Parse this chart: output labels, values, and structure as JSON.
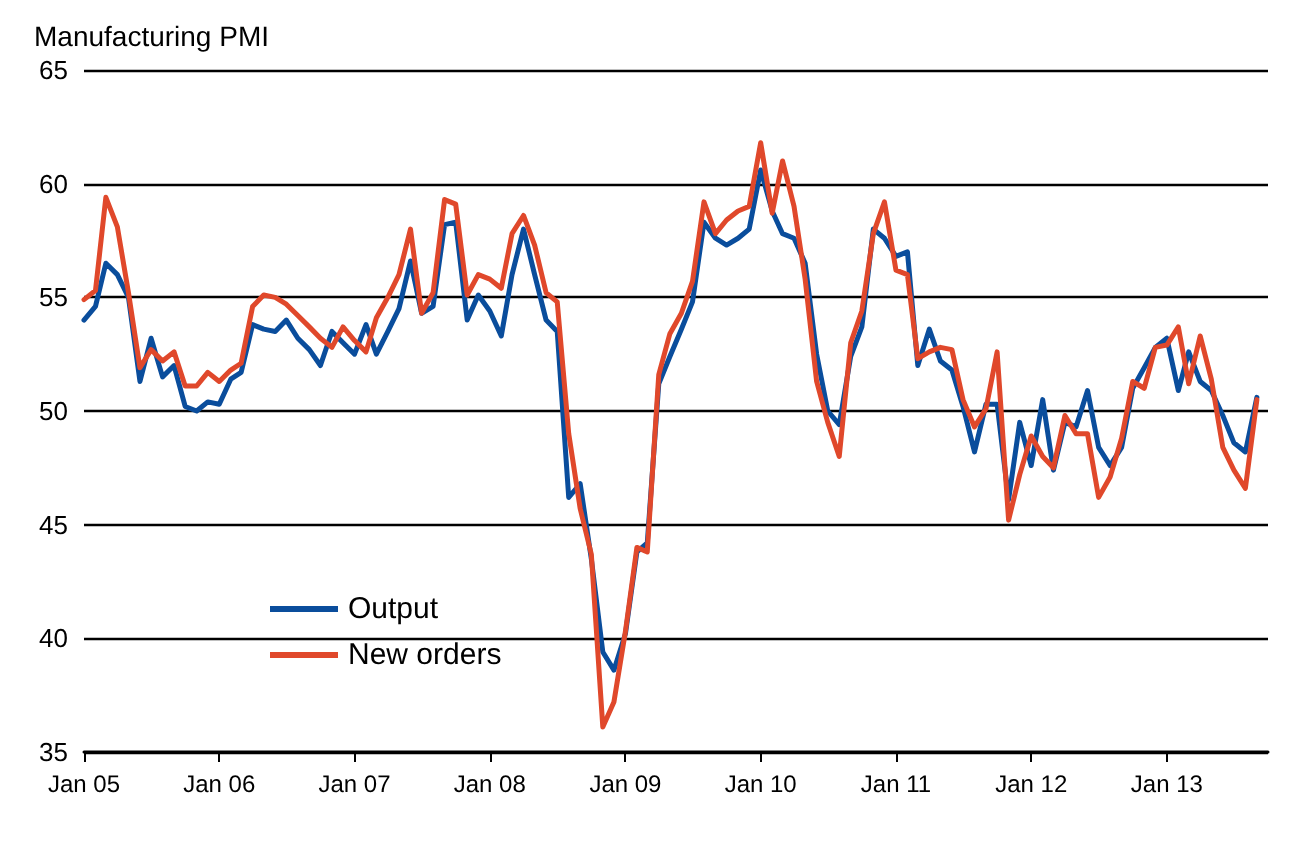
{
  "chart_data": {
    "type": "line",
    "title": "Manufacturing PMI",
    "x": [
      "2005-01",
      "2005-02",
      "2005-03",
      "2005-04",
      "2005-05",
      "2005-06",
      "2005-07",
      "2005-08",
      "2005-09",
      "2005-10",
      "2005-11",
      "2005-12",
      "2006-01",
      "2006-02",
      "2006-03",
      "2006-04",
      "2006-05",
      "2006-06",
      "2006-07",
      "2006-08",
      "2006-09",
      "2006-10",
      "2006-11",
      "2006-12",
      "2007-01",
      "2007-02",
      "2007-03",
      "2007-04",
      "2007-05",
      "2007-06",
      "2007-07",
      "2007-08",
      "2007-09",
      "2007-10",
      "2007-11",
      "2007-12",
      "2008-01",
      "2008-02",
      "2008-03",
      "2008-04",
      "2008-05",
      "2008-06",
      "2008-07",
      "2008-08",
      "2008-09",
      "2008-10",
      "2008-11",
      "2008-12",
      "2009-01",
      "2009-02",
      "2009-03",
      "2009-04",
      "2009-05",
      "2009-06",
      "2009-07",
      "2009-08",
      "2009-09",
      "2009-10",
      "2009-11",
      "2009-12",
      "2010-01",
      "2010-02",
      "2010-03",
      "2010-04",
      "2010-05",
      "2010-06",
      "2010-07",
      "2010-08",
      "2010-09",
      "2010-10",
      "2010-11",
      "2010-12",
      "2011-01",
      "2011-02",
      "2011-03",
      "2011-04",
      "2011-05",
      "2011-06",
      "2011-07",
      "2011-08",
      "2011-09",
      "2011-10",
      "2011-11",
      "2011-12",
      "2012-01",
      "2012-02",
      "2012-03",
      "2012-04",
      "2012-05",
      "2012-06",
      "2012-07",
      "2012-08",
      "2012-09",
      "2012-10",
      "2012-11",
      "2012-12",
      "2013-01",
      "2013-02",
      "2013-03",
      "2013-04",
      "2013-05",
      "2013-06",
      "2013-07",
      "2013-08",
      "2013-09"
    ],
    "series": [
      {
        "name": "Output",
        "color": "#0a4d9c",
        "values": [
          54.0,
          54.6,
          56.5,
          56.0,
          55.0,
          51.3,
          53.2,
          51.5,
          52.0,
          50.2,
          50.0,
          50.4,
          50.3,
          51.4,
          51.7,
          53.8,
          53.6,
          53.5,
          54.0,
          53.2,
          52.7,
          52.0,
          53.5,
          53.0,
          52.5,
          53.8,
          52.5,
          53.5,
          54.5,
          56.6,
          54.3,
          54.6,
          58.2,
          58.3,
          54.0,
          55.1,
          54.4,
          53.3,
          56.0,
          58.0,
          56.0,
          54.0,
          53.5,
          46.2,
          46.8,
          43.5,
          39.4,
          38.6,
          40.2,
          43.8,
          44.2,
          51.2,
          52.4,
          53.6,
          54.8,
          58.3,
          57.6,
          57.3,
          57.6,
          58.0,
          60.6,
          58.8,
          57.8,
          57.6,
          56.5,
          52.5,
          50.0,
          49.4,
          52.4,
          53.7,
          58.0,
          57.6,
          56.8,
          57.0,
          52.0,
          53.6,
          52.2,
          51.8,
          50.2,
          48.2,
          50.3,
          50.3,
          46.1,
          49.5,
          47.6,
          50.5,
          47.4,
          49.5,
          49.3,
          50.9,
          48.4,
          47.6,
          48.4,
          51.0,
          51.9,
          52.8,
          53.2,
          50.9,
          52.6,
          51.3,
          50.9,
          49.8,
          48.6,
          48.2,
          50.6
        ]
      },
      {
        "name": "New orders",
        "color": "#e0482b",
        "values": [
          54.9,
          55.3,
          59.4,
          58.1,
          55.2,
          51.9,
          52.7,
          52.2,
          52.6,
          51.1,
          51.1,
          51.7,
          51.3,
          51.8,
          52.1,
          54.6,
          55.1,
          55.0,
          54.7,
          54.2,
          53.7,
          53.2,
          52.8,
          53.7,
          53.1,
          52.6,
          54.1,
          55.0,
          56.0,
          58.0,
          54.3,
          55.2,
          59.3,
          59.1,
          55.1,
          56.0,
          55.8,
          55.4,
          57.8,
          58.6,
          57.3,
          55.2,
          54.8,
          49.0,
          45.7,
          43.7,
          36.1,
          37.2,
          40.3,
          44.0,
          43.8,
          51.6,
          53.4,
          54.3,
          55.7,
          59.2,
          57.8,
          58.4,
          58.8,
          59.0,
          61.8,
          58.7,
          61.0,
          59.0,
          55.8,
          51.3,
          49.5,
          48.0,
          53.0,
          54.4,
          57.8,
          59.2,
          56.2,
          56.0,
          52.3,
          52.6,
          52.8,
          52.7,
          50.5,
          49.3,
          50.1,
          52.6,
          45.2,
          47.2,
          48.9,
          48.0,
          47.5,
          49.8,
          49.0,
          49.0,
          46.2,
          47.1,
          48.8,
          51.3,
          51.0,
          52.8,
          52.9,
          53.7,
          51.2,
          53.3,
          51.4,
          48.4,
          47.4,
          46.6,
          50.5
        ]
      }
    ],
    "xlim": [
      "2005-01",
      "2013-10"
    ],
    "xticks": [
      {
        "value": "2005-01",
        "label": "Jan 05"
      },
      {
        "value": "2006-01",
        "label": "Jan 06"
      },
      {
        "value": "2007-01",
        "label": "Jan 07"
      },
      {
        "value": "2008-01",
        "label": "Jan 08"
      },
      {
        "value": "2009-01",
        "label": "Jan 09"
      },
      {
        "value": "2010-01",
        "label": "Jan 10"
      },
      {
        "value": "2011-01",
        "label": "Jan 11"
      },
      {
        "value": "2012-01",
        "label": "Jan 12"
      },
      {
        "value": "2013-01",
        "label": "Jan 13"
      }
    ],
    "ylim": [
      35,
      65
    ],
    "yticks": [
      35,
      40,
      45,
      50,
      55,
      60,
      65
    ],
    "grid": "y",
    "legend": "bottom left",
    "marker": "none",
    "line_style": "solid"
  }
}
